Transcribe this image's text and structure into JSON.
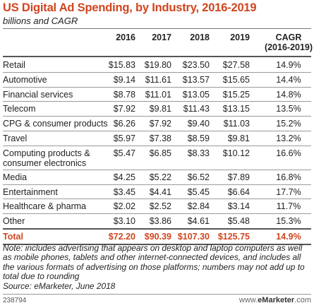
{
  "title": "US Digital Ad Spending, by Industry, 2016-2019",
  "subtitle": "billions and CAGR",
  "note": "Note: includes advertising that appears on desktop and laptop computers as well as mobile phones, tablets and other internet-connected devices, and includes all the various formats of advertising on those platforms; numbers may not add up to total due to rounding",
  "source": "Source: eMarketer, June 2018",
  "footer": {
    "id": "238794",
    "brand_prefix": "www.",
    "brand_name": "eMarketer",
    "brand_suffix": ".com"
  },
  "colors": {
    "accent": "#d0451f",
    "text": "#222222",
    "rule": "#9a9a9a"
  },
  "chart_data": {
    "type": "table",
    "title": "US Digital Ad Spending, by Industry, 2016-2019",
    "subtitle": "billions and CAGR",
    "columns": [
      "2016",
      "2017",
      "2018",
      "2019",
      "CAGR (2016-2019)"
    ],
    "columns_display": [
      "2016",
      "2017",
      "2018",
      "2019",
      "CAGR",
      "(2016-2019)"
    ],
    "rows": [
      {
        "label": "Retail",
        "values": [
          "$15.83",
          "$19.80",
          "$23.50",
          "$27.58",
          "14.9%"
        ]
      },
      {
        "label": "Automotive",
        "values": [
          "$9.14",
          "$11.61",
          "$13.57",
          "$15.65",
          "14.4%"
        ]
      },
      {
        "label": "Financial services",
        "values": [
          "$8.78",
          "$11.01",
          "$13.05",
          "$15.25",
          "14.8%"
        ]
      },
      {
        "label": "Telecom",
        "values": [
          "$7.92",
          "$9.81",
          "$11.43",
          "$13.15",
          "13.5%"
        ]
      },
      {
        "label": "CPG & consumer products",
        "values": [
          "$6.26",
          "$7.92",
          "$9.40",
          "$11.03",
          "15.2%"
        ]
      },
      {
        "label": "Travel",
        "values": [
          "$5.97",
          "$7.38",
          "$8.59",
          "$9.81",
          "13.2%"
        ]
      },
      {
        "label": "Computing products &\nconsumer electronics",
        "values": [
          "$5.47",
          "$6.85",
          "$8.33",
          "$10.12",
          "16.6%"
        ]
      },
      {
        "label": "Media",
        "values": [
          "$4.25",
          "$5.22",
          "$6.52",
          "$7.89",
          "16.8%"
        ]
      },
      {
        "label": "Entertainment",
        "values": [
          "$3.45",
          "$4.41",
          "$5.45",
          "$6.64",
          "17.7%"
        ]
      },
      {
        "label": "Healthcare & pharma",
        "values": [
          "$2.02",
          "$2.52",
          "$2.84",
          "$3.14",
          "11.7%"
        ]
      },
      {
        "label": "Other",
        "values": [
          "$3.10",
          "$3.86",
          "$4.61",
          "$5.48",
          "15.3%"
        ]
      }
    ],
    "total": {
      "label": "Total",
      "values": [
        "$72.20",
        "$90.39",
        "$107.30",
        "$125.75",
        "14.9%"
      ]
    }
  }
}
